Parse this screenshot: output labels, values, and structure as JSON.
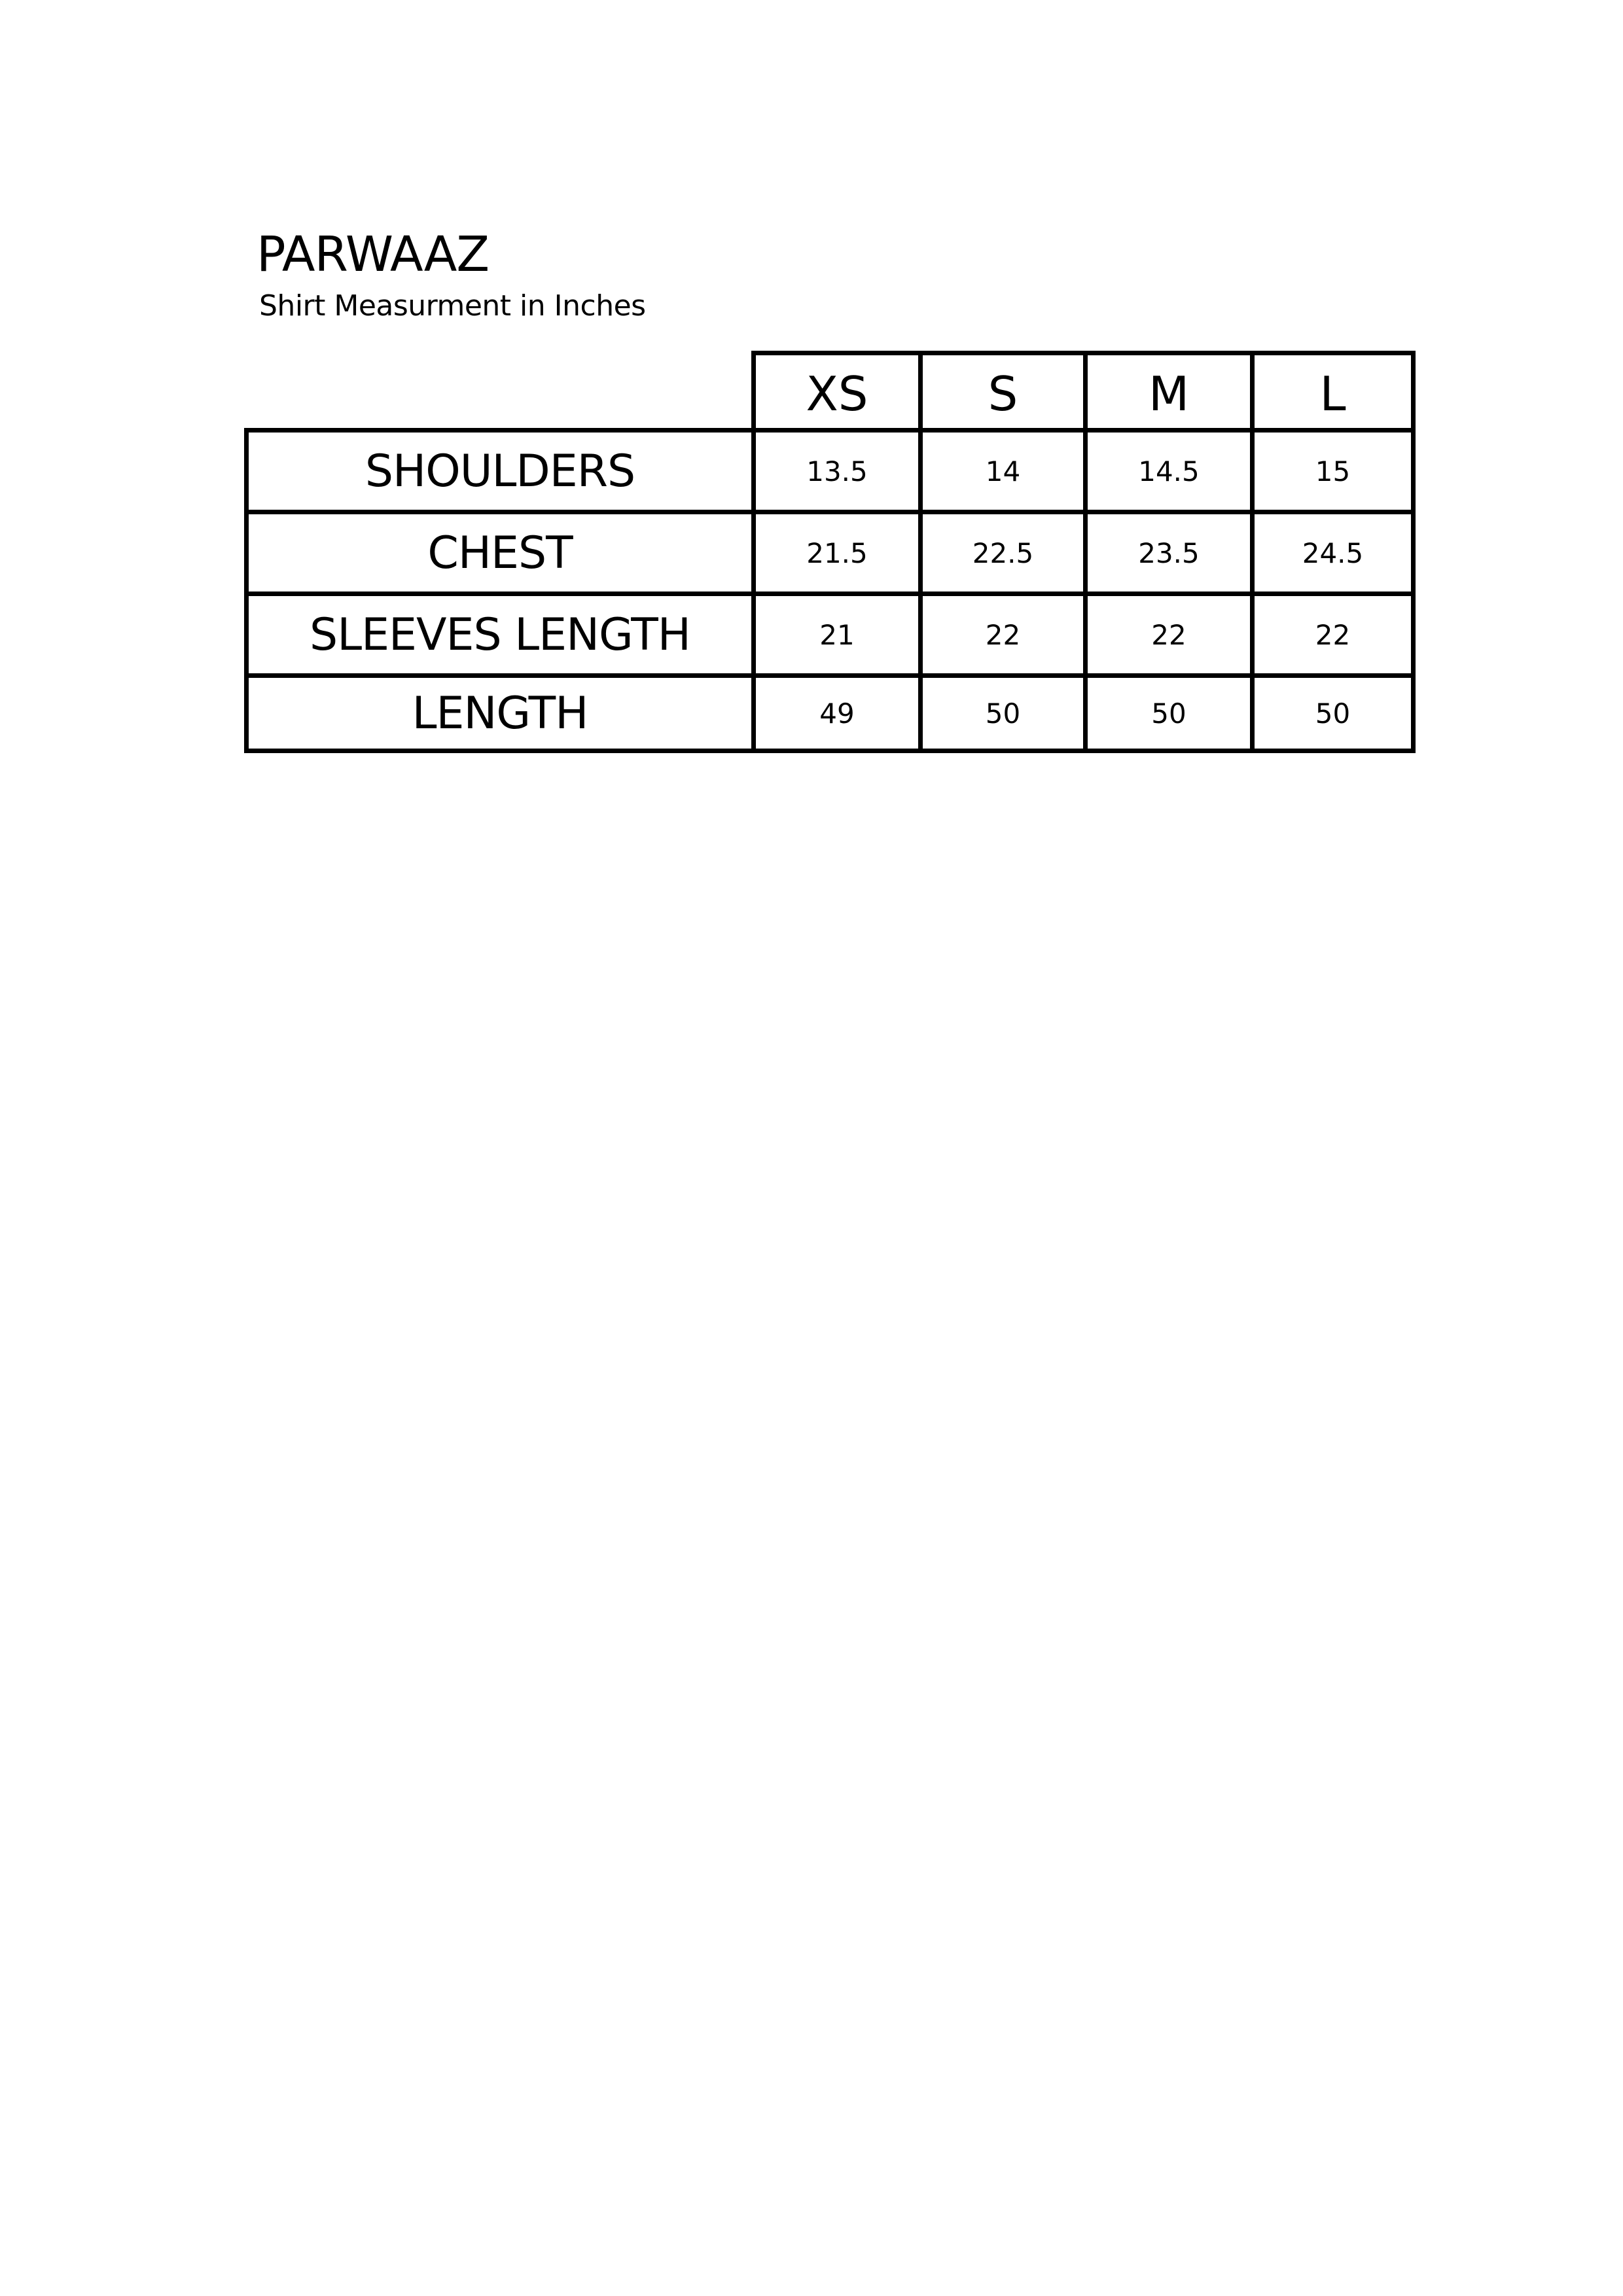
{
  "document": {
    "title": "PARWAAZ",
    "subtitle": "Shirt Measurment in Inches"
  },
  "table": {
    "sizes": [
      "XS",
      "S",
      "M",
      "L"
    ],
    "rows": [
      {
        "label": "SHOULDERS",
        "values": [
          "13.5",
          "14",
          "14.5",
          "15"
        ]
      },
      {
        "label": "CHEST",
        "values": [
          "21.5",
          "22.5",
          "23.5",
          "24.5"
        ]
      },
      {
        "label": "SLEEVES LENGTH",
        "values": [
          "21",
          "22",
          "22",
          "22"
        ]
      },
      {
        "label": "LENGTH",
        "values": [
          "49",
          "50",
          "50",
          "50"
        ]
      }
    ]
  }
}
